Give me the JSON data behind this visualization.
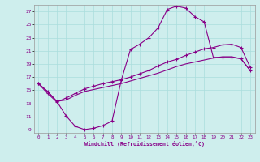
{
  "xlabel": "Windchill (Refroidissement éolien,°C)",
  "bg_color": "#ceeeed",
  "line_color": "#880088",
  "grid_color": "#aadddd",
  "xlim": [
    -0.5,
    23.5
  ],
  "ylim": [
    8.5,
    28.0
  ],
  "yticks": [
    9,
    11,
    13,
    15,
    17,
    19,
    21,
    23,
    25,
    27
  ],
  "xticks": [
    0,
    1,
    2,
    3,
    4,
    5,
    6,
    7,
    8,
    9,
    10,
    11,
    12,
    13,
    14,
    15,
    16,
    17,
    18,
    19,
    20,
    21,
    22,
    23
  ],
  "curve1_x": [
    0,
    1,
    2,
    3,
    4,
    5,
    6,
    7,
    8,
    9,
    10,
    11,
    12,
    13,
    14,
    15,
    16,
    17,
    18,
    19,
    20,
    21,
    22,
    23
  ],
  "curve1_y": [
    16.0,
    14.8,
    13.3,
    11.1,
    9.5,
    9.0,
    9.2,
    9.6,
    10.3,
    16.5,
    21.2,
    22.0,
    23.0,
    24.5,
    27.3,
    27.8,
    27.5,
    26.2,
    25.4,
    20.0,
    20.0,
    20.0,
    19.8,
    18.0
  ],
  "curve2_x": [
    0,
    1,
    2,
    3,
    4,
    5,
    6,
    7,
    8,
    9,
    10,
    11,
    12,
    13,
    14,
    15,
    16,
    17,
    18,
    19,
    20,
    21,
    22,
    23
  ],
  "curve2_y": [
    16.0,
    14.8,
    13.3,
    13.5,
    14.2,
    14.8,
    15.1,
    15.4,
    15.7,
    16.0,
    16.4,
    16.8,
    17.2,
    17.6,
    18.1,
    18.6,
    19.0,
    19.3,
    19.6,
    19.9,
    20.1,
    20.1,
    19.8,
    18.0
  ],
  "curve3_x": [
    0,
    1,
    2,
    3,
    4,
    5,
    6,
    7,
    8,
    9,
    10,
    11,
    12,
    13,
    14,
    15,
    16,
    17,
    18,
    19,
    20,
    21,
    22,
    23
  ],
  "curve3_y": [
    16.0,
    14.5,
    13.2,
    13.8,
    14.5,
    15.2,
    15.6,
    16.0,
    16.3,
    16.6,
    17.0,
    17.5,
    18.0,
    18.7,
    19.3,
    19.7,
    20.3,
    20.8,
    21.3,
    21.5,
    21.9,
    22.0,
    21.5,
    18.5
  ]
}
